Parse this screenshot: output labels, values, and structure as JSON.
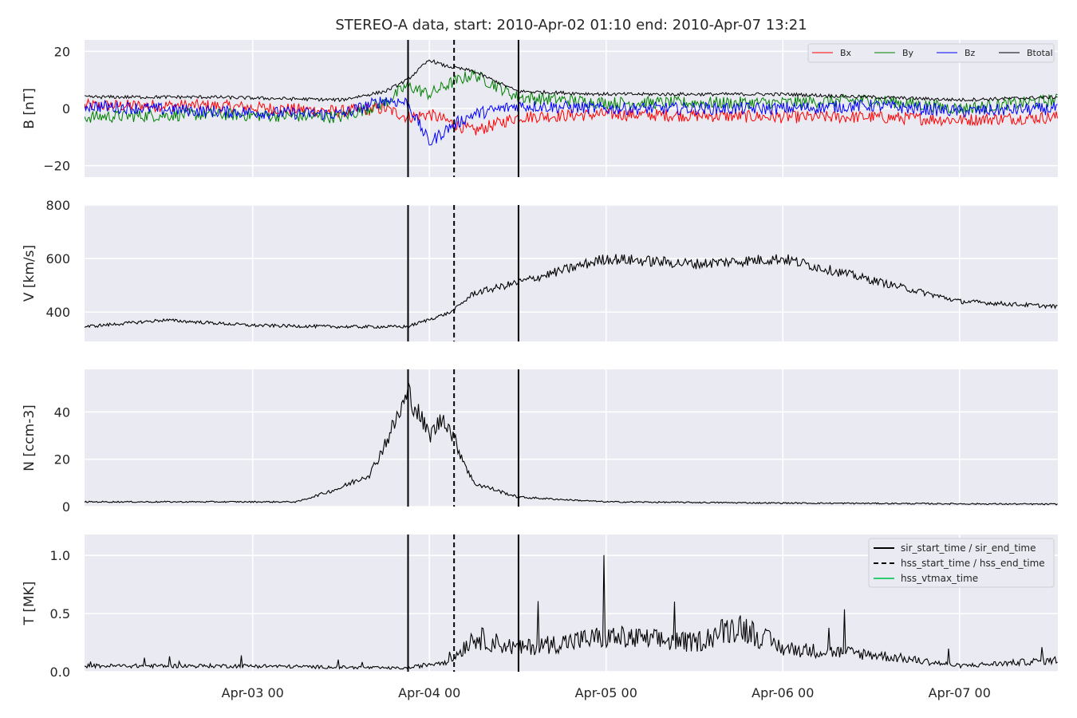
{
  "chart_data": {
    "type": "line",
    "title": "STEREO-A data, start: 2010-Apr-02 01:10  end: 2010-Apr-07 13:21",
    "x_range": [
      "2010-04-02 01:10",
      "2010-04-07 13:21"
    ],
    "x_tick_labels": [
      {
        "t": "2010-04-03 00:00",
        "label": "Apr-03 00"
      },
      {
        "t": "2010-04-04 00:00",
        "label": "Apr-04 00"
      },
      {
        "t": "2010-04-05 00:00",
        "label": "Apr-05 00"
      },
      {
        "t": "2010-04-06 00:00",
        "label": "Apr-06 00"
      },
      {
        "t": "2010-04-07 00:00",
        "label": "Apr-07 00"
      }
    ],
    "grid": true,
    "event_lines": {
      "sir_start_time": "2010-04-03 21:06",
      "hss_start_time": "2010-04-04 03:21",
      "sir_end_time": "2010-04-04 12:06"
    },
    "legend_events": {
      "placement": "top-right",
      "entries": [
        {
          "label": "sir_start_time / sir_end_time",
          "style": "solid",
          "color": "#000000"
        },
        {
          "label": "hss_start_time / hss_end_time",
          "style": "dashed",
          "color": "#000000"
        },
        {
          "label": "hss_vtmax_time",
          "style": "solid",
          "color": "#2ecc71"
        }
      ]
    },
    "panels": [
      {
        "ylabel": "B [nT]",
        "ylim": [
          -24,
          24
        ],
        "yticks": [
          -20,
          0,
          20
        ],
        "legend": {
          "placement": "top-right",
          "entries": [
            "Bx",
            "By",
            "Bz",
            "Btotal"
          ]
        },
        "series": [
          {
            "name": "Bx",
            "color": "#ff0000",
            "x": [
              "2010-04-02 01:10",
              "2010-04-02 18:00",
              "2010-04-03 12:00",
              "2010-04-03 18:00",
              "2010-04-03 21:00",
              "2010-04-04 00:00",
              "2010-04-04 03:00",
              "2010-04-04 06:00",
              "2010-04-04 12:00",
              "2010-04-05 00:00",
              "2010-04-06 00:00",
              "2010-04-06 12:00",
              "2010-04-07 00:00",
              "2010-04-07 13:21"
            ],
            "y": [
              1,
              1,
              -1,
              0,
              -3,
              -2,
              -5,
              -8,
              -3,
              -2,
              -3,
              -3,
              -4,
              -3
            ]
          },
          {
            "name": "By",
            "color": "#008000",
            "x": [
              "2010-04-02 01:10",
              "2010-04-02 18:00",
              "2010-04-03 12:00",
              "2010-04-03 18:00",
              "2010-04-03 21:00",
              "2010-04-04 00:00",
              "2010-04-04 03:00",
              "2010-04-04 06:00",
              "2010-04-04 12:00",
              "2010-04-05 00:00",
              "2010-04-06 00:00",
              "2010-04-06 12:00",
              "2010-04-07 00:00",
              "2010-04-07 13:21"
            ],
            "y": [
              -3,
              -2,
              -3,
              2,
              8,
              5,
              9,
              12,
              4,
              2,
              2,
              3,
              0,
              3
            ]
          },
          {
            "name": "Bz",
            "color": "#0000ff",
            "x": [
              "2010-04-02 01:10",
              "2010-04-02 18:00",
              "2010-04-03 12:00",
              "2010-04-03 18:00",
              "2010-04-03 21:00",
              "2010-04-04 00:00",
              "2010-04-04 03:00",
              "2010-04-04 06:00",
              "2010-04-04 12:00",
              "2010-04-05 00:00",
              "2010-04-06 00:00",
              "2010-04-06 12:00",
              "2010-04-07 00:00",
              "2010-04-07 13:21"
            ],
            "y": [
              1,
              -1,
              -2,
              3,
              2,
              -12,
              -6,
              -2,
              1,
              0,
              0,
              1,
              -1,
              0
            ]
          },
          {
            "name": "Btotal",
            "color": "#000000",
            "x": [
              "2010-04-02 01:10",
              "2010-04-02 18:00",
              "2010-04-03 12:00",
              "2010-04-03 18:00",
              "2010-04-03 21:00",
              "2010-04-04 00:00",
              "2010-04-04 02:00",
              "2010-04-04 06:00",
              "2010-04-04 12:00",
              "2010-04-05 00:00",
              "2010-04-06 00:00",
              "2010-04-06 12:00",
              "2010-04-07 00:00",
              "2010-04-07 13:21"
            ],
            "y": [
              4,
              4,
              3,
              6,
              10,
              17,
              15,
              13,
              6,
              5,
              5,
              4,
              3,
              4
            ]
          }
        ]
      },
      {
        "ylabel": "V [km/s]",
        "ylim": [
          290,
          800
        ],
        "yticks": [
          400,
          600,
          800
        ],
        "series": [
          {
            "name": "V",
            "color": "#000000",
            "x": [
              "2010-04-02 01:10",
              "2010-04-02 12:00",
              "2010-04-03 00:00",
              "2010-04-03 12:00",
              "2010-04-03 21:00",
              "2010-04-04 03:00",
              "2010-04-04 06:00",
              "2010-04-04 12:00",
              "2010-04-05 00:00",
              "2010-04-05 12:00",
              "2010-04-06 00:00",
              "2010-04-06 12:00",
              "2010-04-07 00:00",
              "2010-04-07 13:21"
            ],
            "y": [
              345,
              370,
              350,
              345,
              345,
              400,
              470,
              510,
              600,
              580,
              600,
              520,
              440,
              420
            ]
          }
        ]
      },
      {
        "ylabel": "N [ccm-3]",
        "ylim": [
          0,
          58
        ],
        "yticks": [
          0,
          20,
          40
        ],
        "series": [
          {
            "name": "N",
            "color": "#000000",
            "x": [
              "2010-04-02 01:10",
              "2010-04-03 06:00",
              "2010-04-03 12:00",
              "2010-04-03 16:00",
              "2010-04-03 18:30",
              "2010-04-03 21:10",
              "2010-04-04 00:00",
              "2010-04-04 02:00",
              "2010-04-04 06:00",
              "2010-04-04 12:00",
              "2010-04-05 00:00",
              "2010-04-06 00:00",
              "2010-04-07 13:21"
            ],
            "y": [
              2,
              2,
              8,
              14,
              30,
              48,
              30,
              38,
              10,
              4,
              2,
              1.5,
              1
            ]
          }
        ]
      },
      {
        "ylabel": "T [MK]",
        "ylim": [
          0,
          1.18
        ],
        "yticks": [
          0.0,
          0.5,
          1.0
        ],
        "series": [
          {
            "name": "T",
            "color": "#000000",
            "x": [
              "2010-04-02 01:10",
              "2010-04-03 00:00",
              "2010-04-03 21:00",
              "2010-04-04 03:00",
              "2010-04-04 06:00",
              "2010-04-04 12:00",
              "2010-04-05 00:00",
              "2010-04-05 12:00",
              "2010-04-05 18:00",
              "2010-04-06 00:00",
              "2010-04-06 12:00",
              "2010-04-07 00:00",
              "2010-04-07 13:21"
            ],
            "y": [
              0.05,
              0.05,
              0.03,
              0.1,
              0.3,
              0.2,
              0.3,
              0.25,
              0.4,
              0.2,
              0.15,
              0.05,
              0.1
            ]
          }
        ]
      }
    ]
  }
}
